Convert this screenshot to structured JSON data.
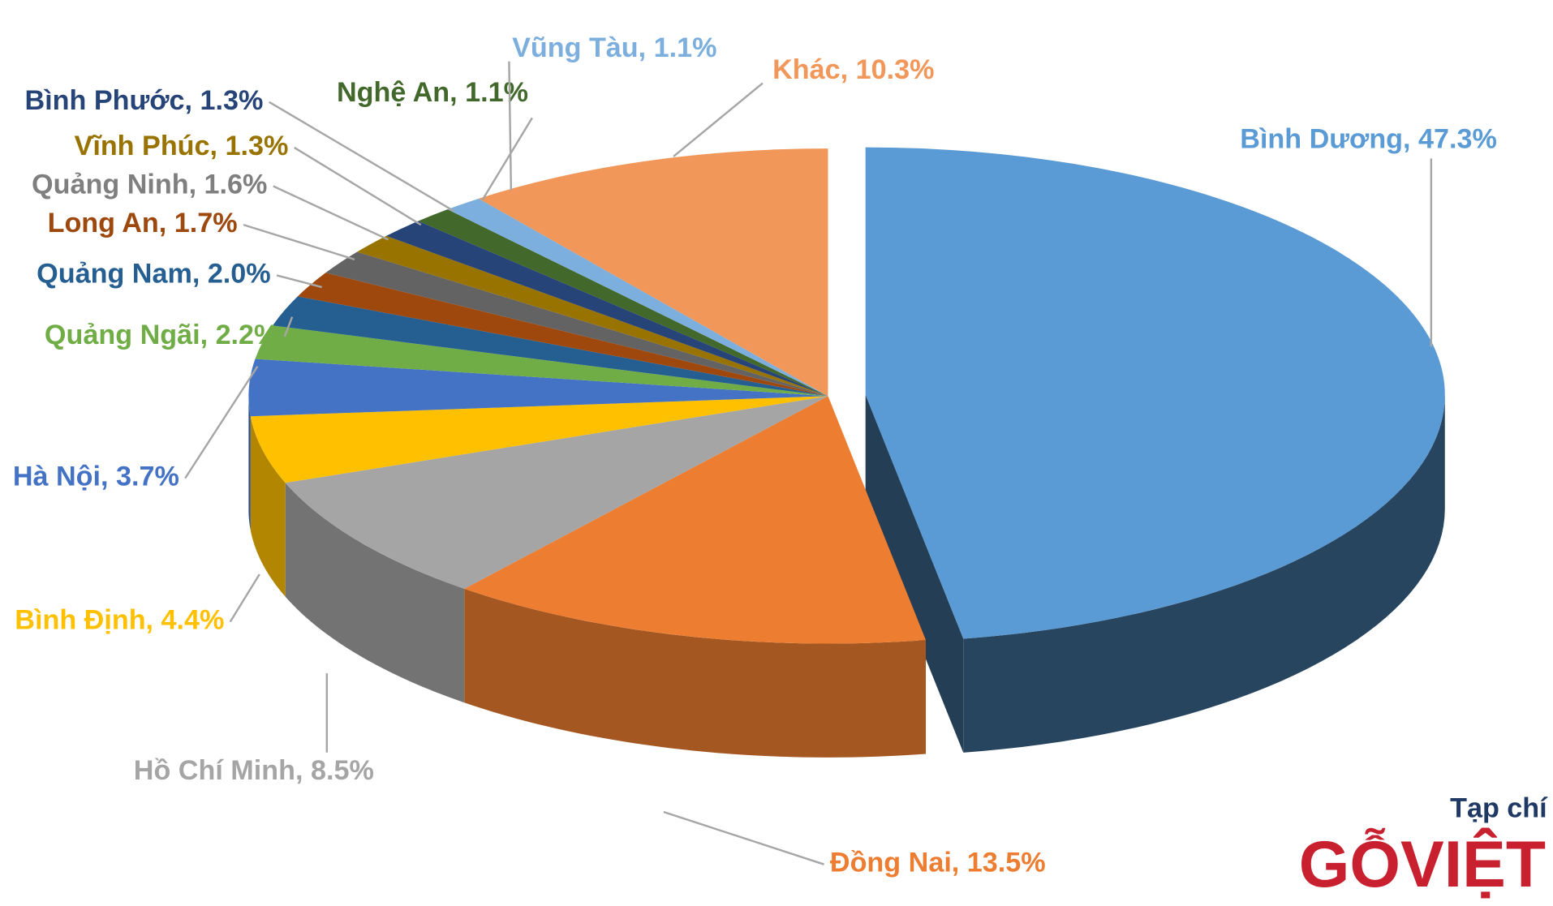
{
  "chart_data": {
    "type": "pie3d",
    "values": [
      47.3,
      13.5,
      8.5,
      4.4,
      3.7,
      2.2,
      2.0,
      1.7,
      1.6,
      1.3,
      1.3,
      1.1,
      1.1,
      10.3
    ],
    "value_labels": [
      "Bình Dương, 47.3%",
      "Đồng Nai, 13.5%",
      "Hồ Chí Minh, 8.5%",
      "Bình Định, 4.4%",
      "Hà Nội, 3.7%",
      "Quảng Ngãi, 2.2%",
      "Quảng Nam, 2.0%",
      "Long An, 1.7%",
      "Quảng Ninh, 1.6%",
      "Vĩnh Phúc, 1.3%",
      "Bình Phước, 1.3%",
      "Nghệ An, 1.1%",
      "Vũng Tàu, 1.1%",
      "Khác, 10.3%"
    ],
    "colors": [
      "#5b9bd5",
      "#ed7d31",
      "#a5a5a5",
      "#ffc000",
      "#4472c4",
      "#70ad47",
      "#255e91",
      "#9e480e",
      "#636363",
      "#997300",
      "#264478",
      "#43682b",
      "#7cafdd",
      "#f1975a"
    ],
    "label_colors": [
      "#5b9bd5",
      "#ed7d31",
      "#a5a5a5",
      "#ffc000",
      "#4472c4",
      "#70ad47",
      "#255e91",
      "#9e480e",
      "#7f7f7f",
      "#997300",
      "#264478",
      "#43682b",
      "#7cafdd",
      "#f1975a"
    ],
    "exploded": [
      0
    ]
  },
  "logo": {
    "line1": "Tạp chí",
    "line2": "GỖVIỆT"
  }
}
